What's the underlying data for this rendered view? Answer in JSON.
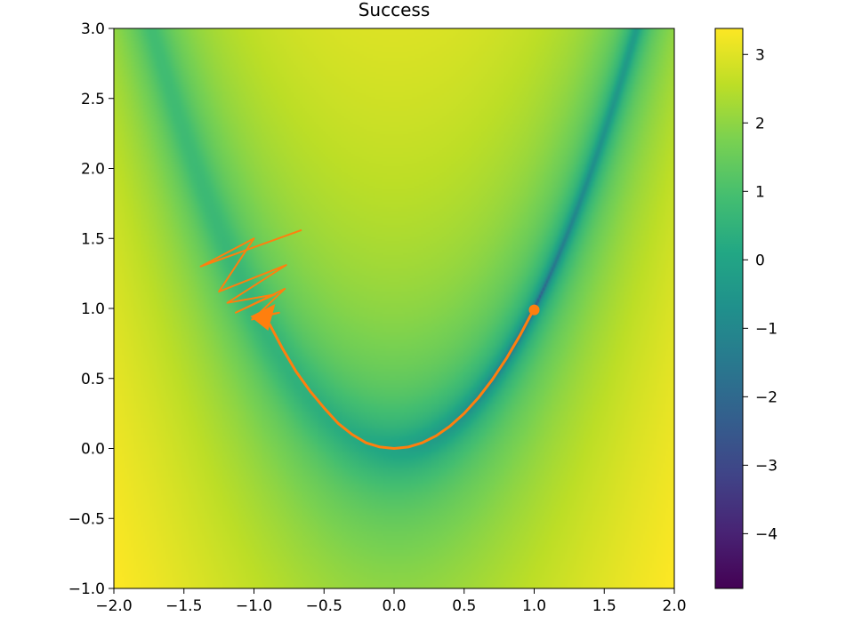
{
  "chart_data": {
    "type": "heatmap",
    "title": "Success",
    "xlabel": "",
    "ylabel": "",
    "xlim": [
      -2.0,
      2.0
    ],
    "ylim": [
      -1.0,
      3.0
    ],
    "x_ticks": [
      "−2.0",
      "−1.5",
      "−1.0",
      "−0.5",
      "0.0",
      "0.5",
      "1.0",
      "1.5",
      "2.0"
    ],
    "y_ticks": [
      "−1.0",
      "−0.5",
      "0.0",
      "0.5",
      "1.0",
      "1.5",
      "2.0",
      "2.5",
      "3.0"
    ],
    "heatmap": {
      "function": "log10 of Rosenbrock function (1 - x)^2 + 100 (y - x^2)^2",
      "colormap": "viridis",
      "vmin": -4.8,
      "vmax": 3.38,
      "grid": "off"
    },
    "colorbar": {
      "ticks": [
        "3",
        "2",
        "1",
        "0",
        "−1",
        "−2",
        "−3",
        "−4"
      ],
      "tick_values": [
        3,
        2,
        1,
        0,
        -1,
        -2,
        -3,
        -4
      ],
      "range": [
        -4.8,
        3.38
      ]
    },
    "series": [
      {
        "type": "line",
        "color": "#ff7f0e",
        "points": [
          [
            -0.89,
            0.89
          ],
          [
            -0.8,
            0.72
          ],
          [
            -0.7,
            0.55
          ],
          [
            -0.6,
            0.41
          ],
          [
            -0.5,
            0.29
          ],
          [
            -0.4,
            0.18
          ],
          [
            -0.3,
            0.1
          ],
          [
            -0.2,
            0.04
          ],
          [
            -0.1,
            0.01
          ],
          [
            0.0,
            0.0
          ],
          [
            0.1,
            0.01
          ],
          [
            0.2,
            0.04
          ],
          [
            0.3,
            0.09
          ],
          [
            0.4,
            0.16
          ],
          [
            0.5,
            0.25
          ],
          [
            0.6,
            0.36
          ],
          [
            0.7,
            0.49
          ],
          [
            0.8,
            0.64
          ],
          [
            0.9,
            0.81
          ],
          [
            1.0,
            1.0
          ]
        ]
      },
      {
        "type": "line",
        "color": "#ff7f0e",
        "points": [
          [
            -1.02,
            0.92
          ],
          [
            -0.82,
            0.97
          ],
          [
            -0.99,
            0.94
          ],
          [
            -0.78,
            1.14
          ],
          [
            -1.13,
            0.97
          ],
          [
            -0.85,
            1.1
          ],
          [
            -1.19,
            1.04
          ],
          [
            -0.77,
            1.31
          ],
          [
            -1.25,
            1.12
          ],
          [
            -1.0,
            1.5
          ],
          [
            -1.38,
            1.3
          ],
          [
            -0.66,
            1.56
          ]
        ]
      }
    ],
    "markers": [
      {
        "label": "end",
        "x": 1.0,
        "y": 0.99,
        "color": "#ff7f0e",
        "shape": "circle"
      },
      {
        "label": "start-cluster",
        "x": -0.95,
        "y": 0.93,
        "color": "#ff7f0e",
        "shape": "triangle"
      }
    ]
  }
}
